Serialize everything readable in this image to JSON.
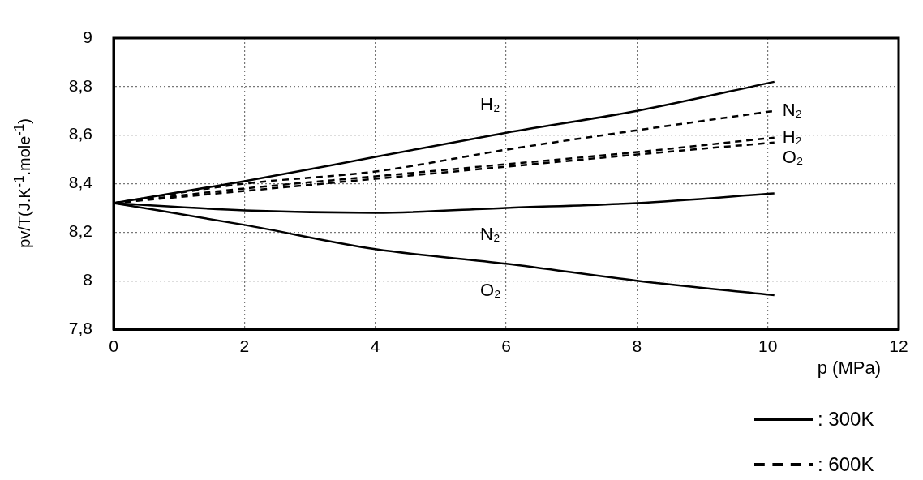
{
  "chart_data": {
    "type": "line",
    "xlabel": "p (MPa)",
    "ylabel": "pv/T(J.K$^{-1}$.mole$^{-1}$)",
    "xlim": [
      0,
      12
    ],
    "xticks": [
      0,
      2,
      4,
      6,
      8,
      10,
      12
    ],
    "ylim": [
      7.8,
      9
    ],
    "yticks": [
      {
        "value": 7.8,
        "label": "7,8"
      },
      8,
      {
        "value": 8.2,
        "label": "8,2"
      },
      {
        "value": 8.4,
        "label": "8,4"
      },
      {
        "value": 8.6,
        "label": "8,6"
      },
      {
        "value": 8.8,
        "label": "8,8"
      },
      9
    ],
    "grid": true,
    "x": [
      0,
      2,
      4,
      6,
      8,
      10.1
    ],
    "series": [
      {
        "name": "H₂",
        "color": "#000000",
        "line_style": "solid",
        "values": [
          8.32,
          8.41,
          8.51,
          8.61,
          8.7,
          8.82
        ]
      },
      {
        "name": "N₂",
        "color": "#000000",
        "line_style": "solid",
        "values": [
          8.32,
          8.29,
          8.28,
          8.3,
          8.32,
          8.36
        ]
      },
      {
        "name": "O₂",
        "color": "#000000",
        "line_style": "solid",
        "values": [
          8.32,
          8.23,
          8.13,
          8.07,
          8.0,
          7.94
        ]
      },
      {
        "name": "N₂",
        "color": "#000000",
        "line_style": "dashed",
        "values": [
          8.32,
          8.4,
          8.45,
          8.54,
          8.62,
          8.7
        ]
      },
      {
        "name": "H₂",
        "color": "#000000",
        "line_style": "dashed",
        "values": [
          8.32,
          8.38,
          8.43,
          8.48,
          8.53,
          8.59
        ]
      },
      {
        "name": "O₂",
        "color": "#000000",
        "line_style": "dashed",
        "values": [
          8.32,
          8.37,
          8.42,
          8.47,
          8.52,
          8.57
        ]
      }
    ],
    "annotations": [
      ": 300K",
      ": 600K"
    ]
  }
}
